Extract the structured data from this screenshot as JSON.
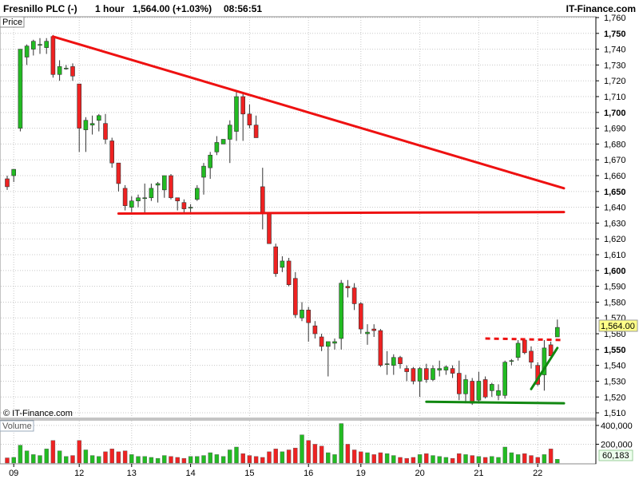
{
  "header": {
    "instrument": "Fresnillo PLC (-)",
    "interval": "1 hour",
    "price_change": "1,564.00 (+1.03%)",
    "time": "08:56:51",
    "brand": "IT-Finance.com"
  },
  "panels": {
    "price_label": "Price",
    "volume_label": "Volume",
    "watermark": "© IT-Finance.com"
  },
  "colors": {
    "up": "#22bb22",
    "down": "#ee2222",
    "trendline": "#ee1111",
    "support": "#118811",
    "grid": "#c8c8c8"
  },
  "chart_data": {
    "type": "candlestick",
    "price_axis": {
      "range": [
        1507,
        1760
      ],
      "ticks": [
        1510,
        1520,
        1530,
        1540,
        1550,
        1560,
        1570,
        1580,
        1590,
        1600,
        1610,
        1620,
        1630,
        1640,
        1650,
        1660,
        1670,
        1680,
        1690,
        1700,
        1710,
        1720,
        1730,
        1740,
        1750,
        1760
      ],
      "bold_ticks": [
        1550,
        1600,
        1650,
        1700,
        1750
      ],
      "last_price": "1,564.00"
    },
    "volume_axis": {
      "range": [
        0,
        450000
      ],
      "ticks": [
        200000,
        400000
      ],
      "tick_labels": [
        "200,000",
        "400,000"
      ],
      "average_label": "60,183"
    },
    "x_axis": {
      "labels": [
        "09",
        "12",
        "13",
        "14",
        "15",
        "16",
        "19",
        "20",
        "21",
        "22"
      ],
      "label_index": [
        1,
        11,
        19,
        28,
        37,
        46,
        54,
        63,
        72,
        81
      ]
    },
    "candles": [
      {
        "o": 1658,
        "h": 1660,
        "l": 1651,
        "c": 1653,
        "v": 55000
      },
      {
        "o": 1660,
        "h": 1664,
        "l": 1656,
        "c": 1664,
        "v": 60000
      },
      {
        "o": 1690,
        "h": 1740,
        "l": 1688,
        "c": 1740,
        "v": 190000
      },
      {
        "o": 1735,
        "h": 1743,
        "l": 1730,
        "c": 1742,
        "v": 130000
      },
      {
        "o": 1740,
        "h": 1746,
        "l": 1736,
        "c": 1745,
        "v": 90000
      },
      {
        "o": 1743,
        "h": 1747,
        "l": 1737,
        "c": 1743,
        "v": 80000
      },
      {
        "o": 1741,
        "h": 1747,
        "l": 1737,
        "c": 1745,
        "v": 150000
      },
      {
        "o": 1748,
        "h": 1749,
        "l": 1722,
        "c": 1724,
        "v": 240000
      },
      {
        "o": 1724,
        "h": 1733,
        "l": 1720,
        "c": 1729,
        "v": 130000
      },
      {
        "o": 1728,
        "h": 1730,
        "l": 1727,
        "c": 1728,
        "v": 70000
      },
      {
        "o": 1729,
        "h": 1731,
        "l": 1720,
        "c": 1723,
        "v": 80000
      },
      {
        "o": 1718,
        "h": 1718,
        "l": 1675,
        "c": 1690,
        "v": 240000
      },
      {
        "o": 1689,
        "h": 1697,
        "l": 1675,
        "c": 1695,
        "v": 140000
      },
      {
        "o": 1692,
        "h": 1698,
        "l": 1686,
        "c": 1693,
        "v": 80000
      },
      {
        "o": 1695,
        "h": 1699,
        "l": 1688,
        "c": 1698,
        "v": 70000
      },
      {
        "o": 1693,
        "h": 1699,
        "l": 1680,
        "c": 1683,
        "v": 120000
      },
      {
        "o": 1682,
        "h": 1684,
        "l": 1665,
        "c": 1668,
        "v": 150000
      },
      {
        "o": 1668,
        "h": 1668,
        "l": 1650,
        "c": 1655,
        "v": 120000
      },
      {
        "o": 1652,
        "h": 1654,
        "l": 1638,
        "c": 1641,
        "v": 130000
      },
      {
        "o": 1640,
        "h": 1647,
        "l": 1637,
        "c": 1644,
        "v": 90000
      },
      {
        "o": 1644,
        "h": 1648,
        "l": 1640,
        "c": 1646,
        "v": 70000
      },
      {
        "o": 1646,
        "h": 1655,
        "l": 1636,
        "c": 1646,
        "v": 70000
      },
      {
        "o": 1646,
        "h": 1655,
        "l": 1644,
        "c": 1652,
        "v": 60000
      },
      {
        "o": 1654,
        "h": 1656,
        "l": 1643,
        "c": 1655,
        "v": 50000
      },
      {
        "o": 1651,
        "h": 1659,
        "l": 1646,
        "c": 1660,
        "v": 80000
      },
      {
        "o": 1660,
        "h": 1661,
        "l": 1645,
        "c": 1646,
        "v": 70000
      },
      {
        "o": 1646,
        "h": 1646,
        "l": 1638,
        "c": 1644,
        "v": 60000
      },
      {
        "o": 1643,
        "h": 1645,
        "l": 1636,
        "c": 1639,
        "v": 50000
      },
      {
        "o": 1640,
        "h": 1642,
        "l": 1637,
        "c": 1640,
        "v": 70000
      },
      {
        "o": 1645,
        "h": 1654,
        "l": 1644,
        "c": 1652,
        "v": 70000
      },
      {
        "o": 1659,
        "h": 1668,
        "l": 1648,
        "c": 1666,
        "v": 80000
      },
      {
        "o": 1665,
        "h": 1675,
        "l": 1658,
        "c": 1673,
        "v": 110000
      },
      {
        "o": 1675,
        "h": 1685,
        "l": 1673,
        "c": 1681,
        "v": 90000
      },
      {
        "o": 1680,
        "h": 1683,
        "l": 1680,
        "c": 1683,
        "v": 70000
      },
      {
        "o": 1683,
        "h": 1695,
        "l": 1668,
        "c": 1692,
        "v": 140000
      },
      {
        "o": 1688,
        "h": 1713,
        "l": 1682,
        "c": 1710,
        "v": 170000
      },
      {
        "o": 1710,
        "h": 1712,
        "l": 1682,
        "c": 1699,
        "v": 100000
      },
      {
        "o": 1699,
        "h": 1705,
        "l": 1690,
        "c": 1692,
        "v": 80000
      },
      {
        "o": 1692,
        "h": 1698,
        "l": 1685,
        "c": 1684,
        "v": 70000
      },
      {
        "o": 1653,
        "h": 1665,
        "l": 1626,
        "c": 1636,
        "v": 60000
      },
      {
        "o": 1636,
        "h": 1636,
        "l": 1617,
        "c": 1617,
        "v": 120000
      },
      {
        "o": 1615,
        "h": 1617,
        "l": 1596,
        "c": 1598,
        "v": 150000
      },
      {
        "o": 1602,
        "h": 1609,
        "l": 1599,
        "c": 1606,
        "v": 120000
      },
      {
        "o": 1606,
        "h": 1608,
        "l": 1590,
        "c": 1591,
        "v": 140000
      },
      {
        "o": 1595,
        "h": 1599,
        "l": 1570,
        "c": 1572,
        "v": 160000
      },
      {
        "o": 1570,
        "h": 1580,
        "l": 1568,
        "c": 1575,
        "v": 300000
      },
      {
        "o": 1575,
        "h": 1577,
        "l": 1555,
        "c": 1567,
        "v": 240000
      },
      {
        "o": 1565,
        "h": 1568,
        "l": 1557,
        "c": 1560,
        "v": 200000
      },
      {
        "o": 1558,
        "h": 1560,
        "l": 1549,
        "c": 1552,
        "v": 180000
      },
      {
        "o": 1552,
        "h": 1554,
        "l": 1533,
        "c": 1555,
        "v": 110000
      },
      {
        "o": 1554,
        "h": 1557,
        "l": 1550,
        "c": 1555,
        "v": 90000
      },
      {
        "o": 1557,
        "h": 1594,
        "l": 1550,
        "c": 1592,
        "v": 420000
      },
      {
        "o": 1590,
        "h": 1594,
        "l": 1583,
        "c": 1589,
        "v": 200000
      },
      {
        "o": 1589,
        "h": 1592,
        "l": 1575,
        "c": 1579,
        "v": 140000
      },
      {
        "o": 1579,
        "h": 1580,
        "l": 1560,
        "c": 1563,
        "v": 120000
      },
      {
        "o": 1560,
        "h": 1566,
        "l": 1553,
        "c": 1561,
        "v": 110000
      },
      {
        "o": 1563,
        "h": 1566,
        "l": 1558,
        "c": 1562,
        "v": 90000
      },
      {
        "o": 1562,
        "h": 1563,
        "l": 1539,
        "c": 1540,
        "v": 110000
      },
      {
        "o": 1541,
        "h": 1549,
        "l": 1534,
        "c": 1541,
        "v": 100000
      },
      {
        "o": 1540,
        "h": 1547,
        "l": 1534,
        "c": 1545,
        "v": 80000
      },
      {
        "o": 1545,
        "h": 1546,
        "l": 1538,
        "c": 1541,
        "v": 60000
      },
      {
        "o": 1538,
        "h": 1540,
        "l": 1530,
        "c": 1536,
        "v": 50000
      },
      {
        "o": 1538,
        "h": 1539,
        "l": 1528,
        "c": 1530,
        "v": 60000
      },
      {
        "o": 1530,
        "h": 1539,
        "l": 1520,
        "c": 1538,
        "v": 90000
      },
      {
        "o": 1538,
        "h": 1541,
        "l": 1529,
        "c": 1531,
        "v": 100000
      },
      {
        "o": 1531,
        "h": 1540,
        "l": 1530,
        "c": 1538,
        "v": 80000
      },
      {
        "o": 1537,
        "h": 1543,
        "l": 1533,
        "c": 1538,
        "v": 70000
      },
      {
        "o": 1537,
        "h": 1540,
        "l": 1534,
        "c": 1539,
        "v": 60000
      },
      {
        "o": 1538,
        "h": 1540,
        "l": 1532,
        "c": 1535,
        "v": 50000
      },
      {
        "o": 1535,
        "h": 1543,
        "l": 1518,
        "c": 1522,
        "v": 100000
      },
      {
        "o": 1522,
        "h": 1534,
        "l": 1516,
        "c": 1531,
        "v": 90000
      },
      {
        "o": 1530,
        "h": 1532,
        "l": 1515,
        "c": 1516,
        "v": 80000
      },
      {
        "o": 1518,
        "h": 1536,
        "l": 1516,
        "c": 1530,
        "v": 70000
      },
      {
        "o": 1531,
        "h": 1533,
        "l": 1519,
        "c": 1520,
        "v": 60000
      },
      {
        "o": 1524,
        "h": 1529,
        "l": 1520,
        "c": 1528,
        "v": 70000
      },
      {
        "o": 1521,
        "h": 1528,
        "l": 1518,
        "c": 1524,
        "v": 60000
      },
      {
        "o": 1521,
        "h": 1543,
        "l": 1519,
        "c": 1542,
        "v": 170000
      },
      {
        "o": 1543,
        "h": 1544,
        "l": 1540,
        "c": 1543,
        "v": 110000
      },
      {
        "o": 1545,
        "h": 1556,
        "l": 1543,
        "c": 1554,
        "v": 90000
      },
      {
        "o": 1556,
        "h": 1557,
        "l": 1547,
        "c": 1548,
        "v": 100000
      },
      {
        "o": 1549,
        "h": 1552,
        "l": 1538,
        "c": 1542,
        "v": 80000
      },
      {
        "o": 1540,
        "h": 1542,
        "l": 1527,
        "c": 1528,
        "v": 60000
      },
      {
        "o": 1534,
        "h": 1556,
        "l": 1524,
        "c": 1551,
        "v": 90000
      },
      {
        "o": 1553,
        "h": 1555,
        "l": 1548,
        "c": 1546,
        "v": 150000
      },
      {
        "o": 1558,
        "h": 1569,
        "l": 1558,
        "c": 1564,
        "v": 40000
      }
    ],
    "annotations": [
      {
        "kind": "downtrend-line",
        "color": "#ee1111",
        "style": "solid",
        "from": [
          7,
          1748
        ],
        "to": [
          85,
          1652
        ]
      },
      {
        "kind": "horizontal-line",
        "color": "#ee1111",
        "style": "solid",
        "from": [
          17,
          1636
        ],
        "to": [
          85,
          1637
        ]
      },
      {
        "kind": "horizontal-line",
        "color": "#ee1111",
        "style": "dashed",
        "from": [
          73,
          1557
        ],
        "to": [
          85,
          1556
        ]
      },
      {
        "kind": "support-line",
        "color": "#118811",
        "style": "solid",
        "from": [
          64,
          1517
        ],
        "to": [
          85,
          1516
        ]
      },
      {
        "kind": "uptrend-line",
        "color": "#118811",
        "style": "solid",
        "from": [
          80,
          1525
        ],
        "to": [
          84,
          1551
        ]
      }
    ]
  }
}
